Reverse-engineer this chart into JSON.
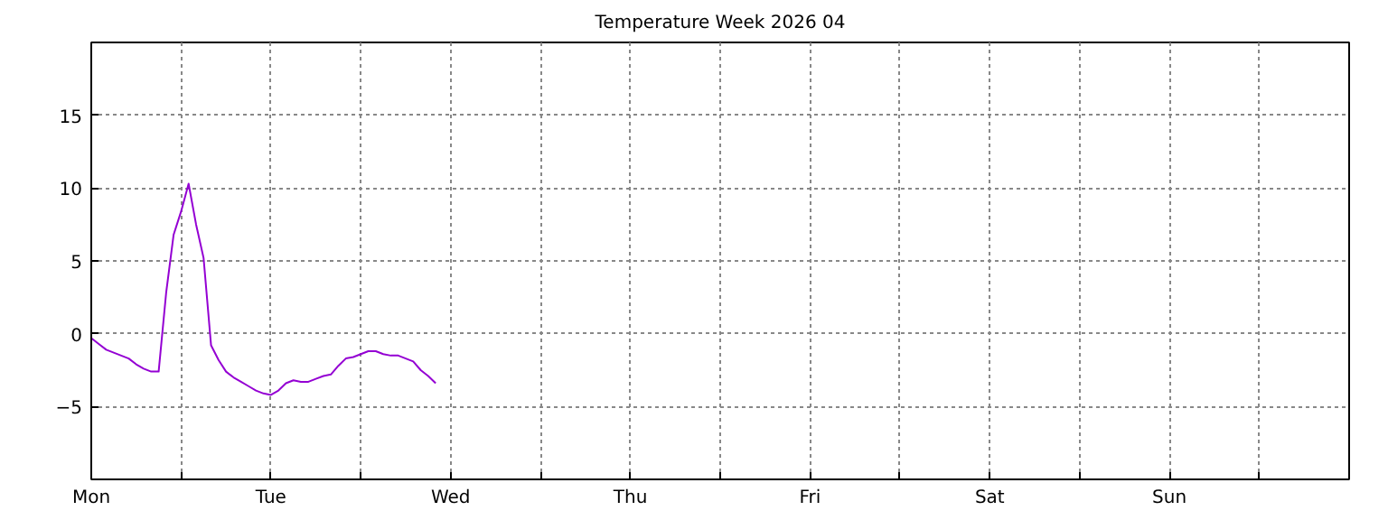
{
  "chart_data": {
    "type": "line",
    "title": "Temperature Week 2026 04",
    "categories": [
      "Mon",
      null,
      null,
      null,
      null,
      null,
      null,
      null,
      null,
      null,
      null,
      null,
      null,
      null,
      null,
      null,
      null,
      null,
      null,
      null,
      null,
      null,
      null,
      null,
      "Tue",
      null,
      null,
      null,
      null,
      null,
      null,
      null,
      null,
      null,
      null,
      null,
      null,
      null,
      null,
      null,
      null,
      null,
      null,
      null,
      null,
      null,
      null,
      null,
      "Wed",
      null,
      null,
      null,
      null,
      null,
      null,
      null,
      null,
      null,
      null,
      null,
      null,
      null,
      null,
      null,
      null,
      null,
      null,
      null,
      null,
      null,
      null,
      null,
      "Thu",
      null,
      null,
      null,
      null,
      null,
      null,
      null,
      null,
      null,
      null,
      null,
      null,
      null,
      null,
      null,
      null,
      null,
      null,
      null,
      null,
      null,
      null,
      null,
      "Fri",
      null,
      null,
      null,
      null,
      null,
      null,
      null,
      null,
      null,
      null,
      null,
      null,
      null,
      null,
      null,
      null,
      null,
      null,
      null,
      null,
      null,
      null,
      null,
      "Sat",
      null,
      null,
      null,
      null,
      null,
      null,
      null,
      null,
      null,
      null,
      null,
      null,
      null,
      null,
      null,
      null,
      null,
      null,
      null,
      null,
      null,
      null,
      null,
      "Sun",
      null,
      null,
      null,
      null,
      null,
      null,
      null,
      null,
      null,
      null,
      null,
      null,
      null,
      null,
      null,
      null,
      null,
      null,
      null,
      null,
      null,
      null,
      null
    ],
    "series": [
      {
        "color": "#9400d3",
        "values": [
          -0.3,
          -0.7,
          -1.1,
          -1.3,
          -1.5,
          -1.7,
          -2.1,
          -2.4,
          -2.6,
          -2.6,
          2.8,
          6.8,
          8.4,
          10.3,
          7.5,
          5.2,
          -0.8,
          -1.8,
          -2.6,
          -3.0,
          -3.3,
          -3.6,
          -3.9,
          -4.1,
          -4.2,
          -3.9,
          -3.4,
          -3.2,
          -3.3,
          -3.3,
          -3.1,
          -2.9,
          -2.8,
          -2.2,
          -1.7,
          -1.6,
          -1.4,
          -1.2,
          -1.2,
          -1.4,
          -1.5,
          -1.5,
          -1.7,
          -1.9,
          -2.5,
          -2.9,
          -3.4,
          null,
          null,
          null,
          null,
          null,
          null,
          null,
          null,
          null,
          null,
          null,
          null,
          null,
          null,
          null,
          null,
          null,
          null,
          null,
          null,
          null,
          null,
          null,
          null,
          null,
          null,
          null,
          null,
          null,
          null,
          null,
          null,
          null,
          null,
          null,
          null,
          null,
          null,
          null,
          null,
          null,
          null,
          null,
          null,
          null,
          null,
          null,
          null,
          null,
          null,
          null,
          null,
          null,
          null,
          null,
          null,
          null,
          null,
          null,
          null,
          null,
          null,
          null,
          null,
          null,
          null,
          null,
          null,
          null,
          null,
          null,
          null,
          null,
          null,
          null,
          null,
          null,
          null,
          null,
          null,
          null,
          null,
          null,
          null,
          null,
          null,
          null,
          null,
          null,
          null,
          null,
          null,
          null,
          null,
          null,
          null,
          null,
          null,
          null,
          null,
          null,
          null,
          null,
          null,
          null,
          null,
          null,
          null,
          null,
          null,
          null,
          null,
          null,
          null,
          null,
          null,
          null,
          null,
          null,
          null,
          null
        ]
      }
    ],
    "ylim": [
      -10,
      20
    ],
    "yticks": [
      -5,
      0,
      5,
      10,
      15
    ],
    "grid": true,
    "marker": "none",
    "line_style": "solid"
  }
}
